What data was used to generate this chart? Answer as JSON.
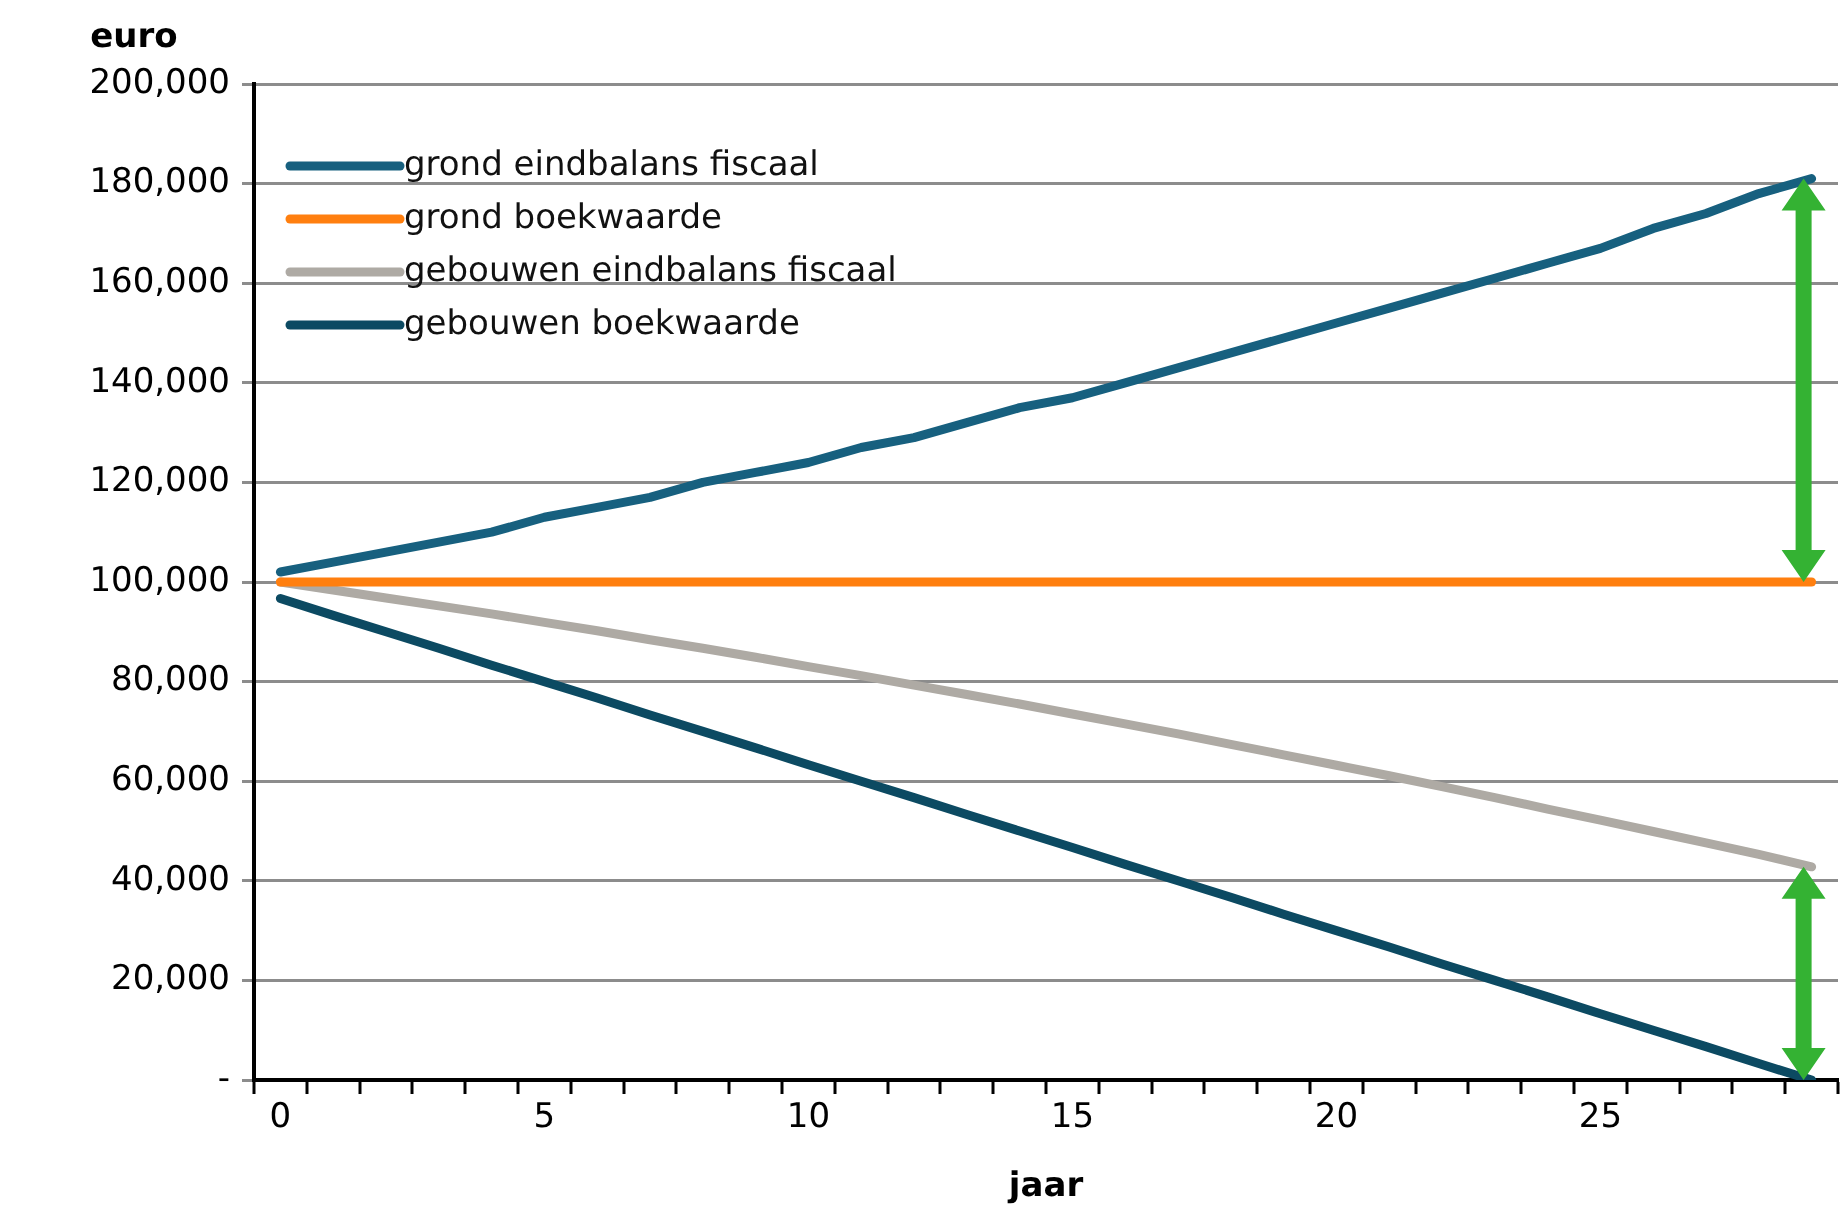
{
  "chart_data": {
    "type": "line",
    "xlabel": "jaar",
    "ylabel": "euro",
    "categories": [
      "0",
      null,
      null,
      null,
      null,
      "5",
      null,
      null,
      null,
      null,
      "10",
      null,
      null,
      null,
      null,
      "15",
      null,
      null,
      null,
      null,
      "20",
      null,
      null,
      null,
      null,
      "25",
      null,
      null,
      null,
      null
    ],
    "series": [
      {
        "name": "grond eindbalans fiscaal",
        "color": "#17607f",
        "values": [
          102000,
          104000,
          106000,
          108000,
          110000,
          113000,
          115000,
          117000,
          120000,
          122000,
          124000,
          127000,
          129000,
          132000,
          135000,
          137000,
          140000,
          143000,
          146000,
          149000,
          152000,
          155000,
          158000,
          161000,
          164000,
          167000,
          171000,
          174000,
          178000,
          181000
        ]
      },
      {
        "name": "grond boekwaarde",
        "color": "#ff7f0f",
        "values": [
          100000,
          100000,
          100000,
          100000,
          100000,
          100000,
          100000,
          100000,
          100000,
          100000,
          100000,
          100000,
          100000,
          100000,
          100000,
          100000,
          100000,
          100000,
          100000,
          100000,
          100000,
          100000,
          100000,
          100000,
          100000,
          100000,
          100000,
          100000,
          100000,
          100000
        ]
      },
      {
        "name": "gebouwen eindbalans fiscaal",
        "color": "#aeaaa4",
        "values": [
          100000,
          98400,
          96800,
          95200,
          93600,
          91900,
          90200,
          88400,
          86700,
          84900,
          83000,
          81200,
          79300,
          77400,
          75500,
          73500,
          71500,
          69500,
          67400,
          65300,
          63200,
          61100,
          58900,
          56700,
          54400,
          52200,
          49900,
          47600,
          45300,
          42800
        ]
      },
      {
        "name": "gebouwen boekwaarde",
        "color": "#0c4a62",
        "values": [
          96700,
          93300,
          90000,
          86700,
          83300,
          80000,
          76700,
          73300,
          70000,
          66700,
          63300,
          60000,
          56700,
          53300,
          50000,
          46700,
          43300,
          40000,
          36700,
          33300,
          30000,
          26700,
          23300,
          20000,
          16700,
          13300,
          10000,
          6700,
          3300,
          0
        ]
      }
    ],
    "ylim": [
      0,
      200000
    ],
    "yticks": [
      {
        "value": 0,
        "label": "-"
      },
      {
        "value": 20000,
        "label": "20,000"
      },
      {
        "value": 40000,
        "label": "40,000"
      },
      {
        "value": 60000,
        "label": "60,000"
      },
      {
        "value": 80000,
        "label": "80,000"
      },
      {
        "value": 100000,
        "label": "100,000"
      },
      {
        "value": 120000,
        "label": "120,000"
      },
      {
        "value": 140000,
        "label": "140,000"
      },
      {
        "value": 160000,
        "label": "160,000"
      },
      {
        "value": 180000,
        "label": "180,000"
      },
      {
        "value": 200000,
        "label": "200,000"
      }
    ],
    "grid": "y",
    "legend": "top left",
    "marker": "none",
    "line_style": "solid"
  }
}
